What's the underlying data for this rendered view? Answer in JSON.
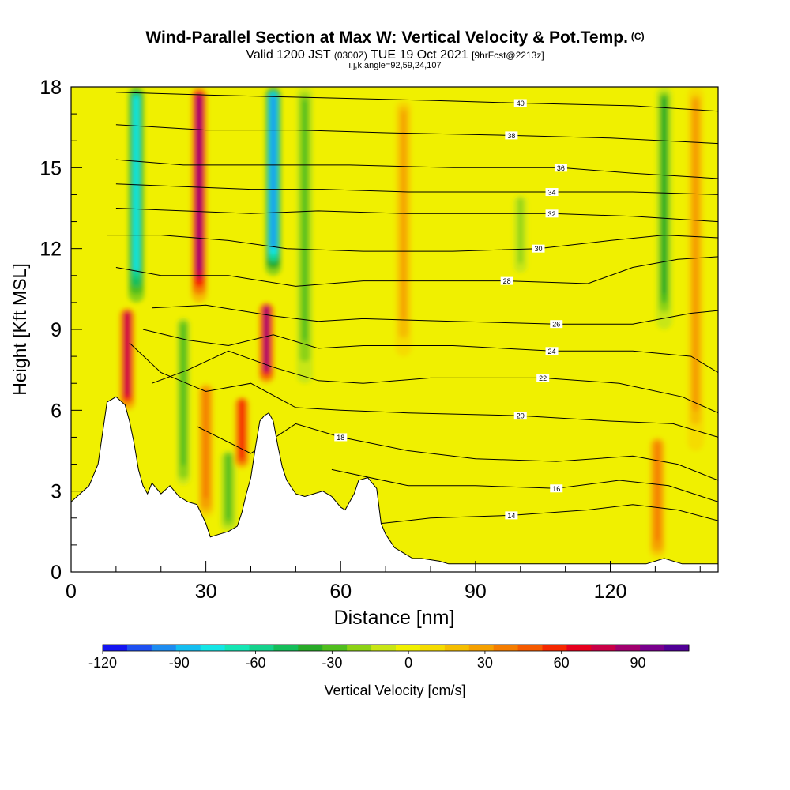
{
  "chart_data": {
    "type": "heatmap",
    "title": "Wind-Parallel Section at Max W: Vertical Velocity & Pot.Temp.",
    "title_mark": "(C)",
    "subtitle": {
      "valid": "Valid 1200 JST",
      "utc": "(0300Z)",
      "date": "TUE 19 Oct 2021",
      "forecast": "[9hrFcst@2213z]"
    },
    "params_line": "i,j,k,angle=92,59,24,107",
    "xlabel": "Distance [nm]",
    "ylabel": "Height [Kft MSL]",
    "xlim": [
      0,
      144
    ],
    "ylim": [
      0,
      18
    ],
    "x_ticks": [
      0,
      30,
      60,
      90,
      120
    ],
    "y_ticks": [
      0,
      3,
      6,
      9,
      12,
      15,
      18
    ],
    "colorbar": {
      "label": "Vertical Velocity [cm/s]",
      "ticks": [
        -120,
        -90,
        -60,
        -30,
        0,
        30,
        60,
        90
      ],
      "min": -120,
      "max": 110,
      "colors": [
        "#1414f0",
        "#1e50f0",
        "#1e8cf0",
        "#14bef0",
        "#14e6e6",
        "#14e6b4",
        "#14d28c",
        "#14be5a",
        "#28aa28",
        "#50be1e",
        "#8cd214",
        "#c8e614",
        "#f0f000",
        "#f5dc00",
        "#f5be00",
        "#f5a000",
        "#f57d00",
        "#f55a00",
        "#f52800",
        "#e6001e",
        "#c80046",
        "#a0006e",
        "#78008c",
        "#500096"
      ]
    },
    "updrafts": [
      {
        "x": 12.5,
        "bottom": 6.0,
        "top": 9.8,
        "peak": 80
      },
      {
        "x": 28.5,
        "bottom": 10.0,
        "top": 18.0,
        "peak": 90
      },
      {
        "x": 30.0,
        "bottom": 2.0,
        "top": 7.0,
        "peak": 40
      },
      {
        "x": 38.0,
        "bottom": 3.8,
        "top": 6.5,
        "peak": 60
      },
      {
        "x": 43.5,
        "bottom": 7.0,
        "top": 10.0,
        "peak": 85
      },
      {
        "x": 74.0,
        "bottom": 8.0,
        "top": 17.5,
        "peak": 25
      },
      {
        "x": 130.5,
        "bottom": 0.5,
        "top": 5.0,
        "peak": 40
      },
      {
        "x": 139.0,
        "bottom": 4.5,
        "top": 18.0,
        "peak": 30
      }
    ],
    "downdrafts": [
      {
        "x": 14.5,
        "bottom": 10.0,
        "top": 18.0,
        "peak": -75
      },
      {
        "x": 45.0,
        "bottom": 11.0,
        "top": 18.0,
        "peak": -100
      },
      {
        "x": 52.0,
        "bottom": 7.0,
        "top": 18.0,
        "peak": -30
      },
      {
        "x": 25.0,
        "bottom": 3.0,
        "top": 9.5,
        "peak": -25
      },
      {
        "x": 35.0,
        "bottom": 1.5,
        "top": 4.5,
        "peak": -30
      },
      {
        "x": 100.0,
        "bottom": 11.0,
        "top": 14.0,
        "peak": -15
      },
      {
        "x": 132.0,
        "bottom": 9.0,
        "top": 18.0,
        "peak": -35
      }
    ],
    "terrain": [
      [
        0,
        2.6
      ],
      [
        2,
        2.9
      ],
      [
        4,
        3.2
      ],
      [
        6,
        4.0
      ],
      [
        8,
        6.3
      ],
      [
        10,
        6.5
      ],
      [
        12,
        6.2
      ],
      [
        13,
        5.6
      ],
      [
        14,
        4.8
      ],
      [
        15,
        3.8
      ],
      [
        16,
        3.2
      ],
      [
        17,
        2.9
      ],
      [
        18,
        3.3
      ],
      [
        20,
        2.9
      ],
      [
        22,
        3.2
      ],
      [
        24,
        2.8
      ],
      [
        26,
        2.6
      ],
      [
        28,
        2.5
      ],
      [
        30,
        1.8
      ],
      [
        31,
        1.3
      ],
      [
        33,
        1.4
      ],
      [
        35,
        1.5
      ],
      [
        37,
        1.7
      ],
      [
        38,
        2.2
      ],
      [
        39,
        2.9
      ],
      [
        40,
        3.5
      ],
      [
        41,
        4.6
      ],
      [
        42,
        5.6
      ],
      [
        43,
        5.8
      ],
      [
        44,
        5.9
      ],
      [
        45,
        5.6
      ],
      [
        46,
        4.7
      ],
      [
        47,
        3.9
      ],
      [
        48,
        3.4
      ],
      [
        50,
        2.9
      ],
      [
        52,
        2.8
      ],
      [
        54,
        2.9
      ],
      [
        56,
        3.0
      ],
      [
        58,
        2.8
      ],
      [
        60,
        2.4
      ],
      [
        61,
        2.3
      ],
      [
        62,
        2.6
      ],
      [
        63,
        2.9
      ],
      [
        64,
        3.4
      ],
      [
        66,
        3.5
      ],
      [
        68,
        3.1
      ],
      [
        69,
        1.8
      ],
      [
        70,
        1.4
      ],
      [
        72,
        0.9
      ],
      [
        74,
        0.7
      ],
      [
        76,
        0.5
      ],
      [
        78,
        0.5
      ],
      [
        82,
        0.4
      ],
      [
        84,
        0.3
      ],
      [
        88,
        0.3
      ],
      [
        100,
        0.3
      ],
      [
        120,
        0.3
      ],
      [
        128,
        0.3
      ],
      [
        132,
        0.5
      ],
      [
        136,
        0.3
      ],
      [
        144,
        0.3
      ]
    ],
    "theta_contours": [
      {
        "level": 14,
        "label": "14",
        "label_at": [
          98,
          2.1
        ],
        "points": [
          [
            69,
            1.8
          ],
          [
            80,
            2.0
          ],
          [
            98,
            2.1
          ],
          [
            115,
            2.3
          ],
          [
            125,
            2.5
          ],
          [
            135,
            2.3
          ],
          [
            144,
            1.9
          ]
        ]
      },
      {
        "level": 16,
        "label": "16",
        "label_at": [
          108,
          3.1
        ],
        "points": [
          [
            58,
            3.8
          ],
          [
            75,
            3.2
          ],
          [
            90,
            3.2
          ],
          [
            108,
            3.1
          ],
          [
            122,
            3.4
          ],
          [
            133,
            3.2
          ],
          [
            144,
            2.6
          ]
        ]
      },
      {
        "level": 18,
        "label": "18",
        "label_at": [
          60,
          5.0
        ],
        "points": [
          [
            28,
            5.4
          ],
          [
            40,
            4.4
          ],
          [
            50,
            5.5
          ],
          [
            60,
            5.0
          ],
          [
            75,
            4.5
          ],
          [
            90,
            4.2
          ],
          [
            108,
            4.1
          ],
          [
            125,
            4.3
          ],
          [
            135,
            4.0
          ],
          [
            144,
            3.4
          ]
        ]
      },
      {
        "level": 20,
        "label": "20",
        "label_at": [
          100,
          5.8
        ],
        "points": [
          [
            13,
            8.5
          ],
          [
            20,
            7.4
          ],
          [
            30,
            6.7
          ],
          [
            40,
            7.0
          ],
          [
            50,
            6.1
          ],
          [
            60,
            6.0
          ],
          [
            75,
            5.9
          ],
          [
            100,
            5.8
          ],
          [
            120,
            5.6
          ],
          [
            134,
            5.5
          ],
          [
            144,
            5.0
          ]
        ]
      },
      {
        "level": 22,
        "label": "22",
        "label_at": [
          105,
          7.2
        ],
        "points": [
          [
            18,
            7.0
          ],
          [
            26,
            7.5
          ],
          [
            35,
            8.2
          ],
          [
            45,
            7.6
          ],
          [
            55,
            7.1
          ],
          [
            65,
            7.0
          ],
          [
            80,
            7.2
          ],
          [
            105,
            7.2
          ],
          [
            122,
            7.0
          ],
          [
            136,
            6.5
          ],
          [
            144,
            5.9
          ]
        ]
      },
      {
        "level": 24,
        "label": "24",
        "label_at": [
          107,
          8.2
        ],
        "points": [
          [
            16,
            9.0
          ],
          [
            26,
            8.6
          ],
          [
            35,
            8.4
          ],
          [
            45,
            8.8
          ],
          [
            55,
            8.3
          ],
          [
            65,
            8.4
          ],
          [
            85,
            8.4
          ],
          [
            107,
            8.2
          ],
          [
            125,
            8.2
          ],
          [
            138,
            8.0
          ],
          [
            144,
            7.4
          ]
        ]
      },
      {
        "level": 26,
        "label": "26",
        "label_at": [
          108,
          9.2
        ],
        "points": [
          [
            18,
            9.8
          ],
          [
            30,
            9.9
          ],
          [
            45,
            9.5
          ],
          [
            55,
            9.3
          ],
          [
            65,
            9.4
          ],
          [
            85,
            9.3
          ],
          [
            108,
            9.2
          ],
          [
            125,
            9.2
          ],
          [
            138,
            9.6
          ],
          [
            144,
            9.7
          ]
        ]
      },
      {
        "level": 28,
        "label": "28",
        "label_at": [
          97,
          10.8
        ],
        "points": [
          [
            10,
            11.3
          ],
          [
            20,
            11.0
          ],
          [
            35,
            11.0
          ],
          [
            50,
            10.6
          ],
          [
            65,
            10.8
          ],
          [
            80,
            10.8
          ],
          [
            97,
            10.8
          ],
          [
            115,
            10.7
          ],
          [
            125,
            11.3
          ],
          [
            135,
            11.6
          ],
          [
            144,
            11.7
          ]
        ]
      },
      {
        "level": 30,
        "label": "30",
        "label_at": [
          104,
          12.0
        ],
        "points": [
          [
            8,
            12.5
          ],
          [
            20,
            12.5
          ],
          [
            35,
            12.3
          ],
          [
            48,
            12.0
          ],
          [
            65,
            11.9
          ],
          [
            85,
            11.9
          ],
          [
            104,
            12.0
          ],
          [
            120,
            12.3
          ],
          [
            132,
            12.5
          ],
          [
            144,
            12.4
          ]
        ]
      },
      {
        "level": 32,
        "label": "32",
        "label_at": [
          107,
          13.3
        ],
        "points": [
          [
            10,
            13.5
          ],
          [
            25,
            13.4
          ],
          [
            40,
            13.3
          ],
          [
            55,
            13.4
          ],
          [
            75,
            13.3
          ],
          [
            107,
            13.3
          ],
          [
            125,
            13.2
          ],
          [
            144,
            13.0
          ]
        ]
      },
      {
        "level": 34,
        "label": "34",
        "label_at": [
          107,
          14.1
        ],
        "points": [
          [
            10,
            14.4
          ],
          [
            25,
            14.3
          ],
          [
            40,
            14.2
          ],
          [
            56,
            14.2
          ],
          [
            75,
            14.1
          ],
          [
            107,
            14.1
          ],
          [
            125,
            14.1
          ],
          [
            144,
            14.0
          ]
        ]
      },
      {
        "level": 36,
        "label": "36",
        "label_at": [
          109,
          15.0
        ],
        "points": [
          [
            10,
            15.3
          ],
          [
            25,
            15.1
          ],
          [
            45,
            15.1
          ],
          [
            62,
            15.1
          ],
          [
            85,
            15.0
          ],
          [
            109,
            15.0
          ],
          [
            125,
            14.8
          ],
          [
            144,
            14.6
          ]
        ]
      },
      {
        "level": 38,
        "label": "38",
        "label_at": [
          98,
          16.2
        ],
        "points": [
          [
            10,
            16.6
          ],
          [
            30,
            16.4
          ],
          [
            50,
            16.4
          ],
          [
            70,
            16.3
          ],
          [
            98,
            16.2
          ],
          [
            120,
            16.1
          ],
          [
            144,
            15.9
          ]
        ]
      },
      {
        "level": 40,
        "label": "40",
        "label_at": [
          100,
          17.4
        ],
        "points": [
          [
            10,
            17.8
          ],
          [
            30,
            17.7
          ],
          [
            55,
            17.6
          ],
          [
            80,
            17.5
          ],
          [
            100,
            17.4
          ],
          [
            125,
            17.3
          ],
          [
            144,
            17.1
          ]
        ]
      }
    ]
  }
}
